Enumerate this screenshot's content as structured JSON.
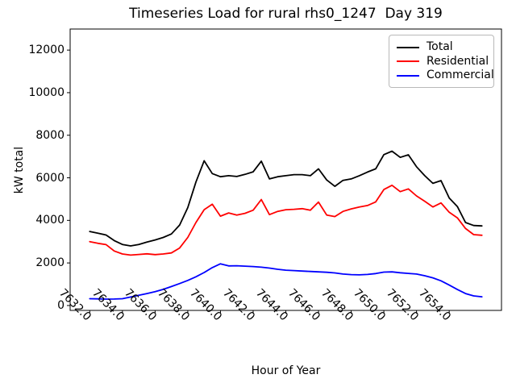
{
  "chart_data": {
    "type": "line",
    "title": "Timeseries Load for rural rhs0_1247  Day 319",
    "xlabel": "Hour of Year",
    "ylabel": "kW total",
    "grid": false,
    "legend_position": "upper right",
    "background_color": "#ffffff",
    "xlim": [
      7630.8,
      7657.2
    ],
    "ylim": [
      -230,
      12990
    ],
    "x_tick_values": [
      7632,
      7634,
      7636,
      7638,
      7640,
      7642,
      7644,
      7646,
      7648,
      7650,
      7652,
      7654
    ],
    "x_tick_labels": [
      "7632.0",
      "7634.0",
      "7636.0",
      "7638.0",
      "7640.0",
      "7642.0",
      "7644.0",
      "7646.0",
      "7648.0",
      "7650.0",
      "7652.0",
      "7654.0"
    ],
    "y_tick_values": [
      0,
      2000,
      4000,
      6000,
      8000,
      10000,
      12000
    ],
    "y_tick_labels": [
      "0",
      "2000",
      "4000",
      "6000",
      "8000",
      "10000",
      "12000"
    ],
    "x": [
      7632.0,
      7632.5,
      7633.0,
      7633.5,
      7634.0,
      7634.5,
      7635.0,
      7635.5,
      7636.0,
      7636.5,
      7637.0,
      7637.5,
      7638.0,
      7638.5,
      7639.0,
      7639.5,
      7640.0,
      7640.5,
      7641.0,
      7641.5,
      7642.0,
      7642.5,
      7643.0,
      7643.5,
      7644.0,
      7644.5,
      7645.0,
      7645.5,
      7646.0,
      7646.5,
      7647.0,
      7647.5,
      7648.0,
      7648.5,
      7649.0,
      7649.5,
      7650.0,
      7650.5,
      7651.0,
      7651.5,
      7652.0,
      7652.5,
      7653.0,
      7653.5,
      7654.0,
      7654.5,
      7655.0,
      7655.5,
      7656.0
    ],
    "series": [
      {
        "name": "Total",
        "color": "#000000",
        "values": [
          3480,
          3400,
          3310,
          3050,
          2870,
          2800,
          2870,
          2980,
          3080,
          3200,
          3360,
          3780,
          4600,
          5800,
          6800,
          6200,
          6050,
          6100,
          6060,
          6160,
          6280,
          6780,
          5950,
          6050,
          6100,
          6150,
          6150,
          6100,
          6420,
          5900,
          5600,
          5880,
          5950,
          6100,
          6270,
          6420,
          7090,
          7250,
          6960,
          7080,
          6520,
          6100,
          5740,
          5870,
          5050,
          4650,
          3900,
          3760,
          3740
        ]
      },
      {
        "name": "Residential",
        "color": "#ff0000",
        "values": [
          3000,
          2920,
          2860,
          2560,
          2420,
          2370,
          2400,
          2430,
          2390,
          2420,
          2470,
          2700,
          3200,
          3900,
          4500,
          4760,
          4200,
          4350,
          4250,
          4330,
          4480,
          4980,
          4270,
          4420,
          4500,
          4520,
          4550,
          4480,
          4860,
          4250,
          4180,
          4420,
          4540,
          4630,
          4700,
          4870,
          5450,
          5650,
          5350,
          5480,
          5150,
          4900,
          4630,
          4820,
          4380,
          4120,
          3620,
          3330,
          3300
        ]
      },
      {
        "name": "Commercial",
        "color": "#0000ff",
        "values": [
          320,
          310,
          300,
          305,
          320,
          400,
          480,
          560,
          650,
          760,
          890,
          1030,
          1180,
          1350,
          1550,
          1780,
          1960,
          1860,
          1870,
          1850,
          1830,
          1800,
          1760,
          1700,
          1660,
          1640,
          1620,
          1600,
          1580,
          1560,
          1530,
          1480,
          1450,
          1440,
          1460,
          1500,
          1570,
          1580,
          1540,
          1510,
          1480,
          1400,
          1300,
          1160,
          960,
          750,
          560,
          450,
          410
        ]
      }
    ]
  }
}
